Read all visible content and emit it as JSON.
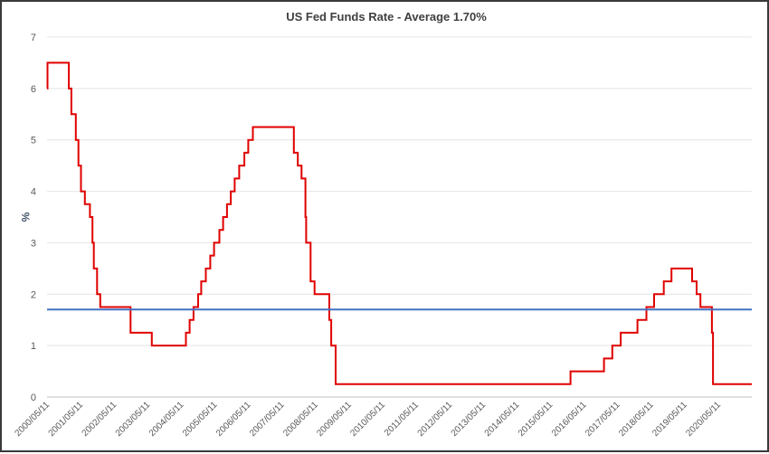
{
  "chart_data": {
    "type": "line",
    "title": "US Fed Funds Rate - Average 1.70%",
    "xlabel": "",
    "ylabel": "%",
    "ylim": [
      0,
      7
    ],
    "yticks": [
      "0",
      "1",
      "2",
      "3",
      "4",
      "5",
      "6",
      "7"
    ],
    "grid": true,
    "xlim": [
      "2000-05-11",
      "2021-05-11"
    ],
    "x_tick_labels": [
      "2000/05/11",
      "2001/05/11",
      "2002/05/11",
      "2003/05/11",
      "2004/05/11",
      "2005/05/11",
      "2006/05/11",
      "2007/05/11",
      "2008/05/11",
      "2009/05/11",
      "2010/05/11",
      "2011/05/11",
      "2012/05/11",
      "2013/05/11",
      "2014/05/11",
      "2015/05/11",
      "2016/05/11",
      "2017/05/11",
      "2018/05/11",
      "2019/05/11",
      "2020/05/11"
    ],
    "series": [
      {
        "color": "#e00000",
        "step": true,
        "x": [
          "2000-05-11",
          "2000-05-16",
          "2001-01-03",
          "2001-01-31",
          "2001-03-20",
          "2001-04-18",
          "2001-05-15",
          "2001-06-27",
          "2001-08-21",
          "2001-09-17",
          "2001-10-02",
          "2001-11-06",
          "2001-12-11",
          "2002-11-06",
          "2003-06-25",
          "2004-06-30",
          "2004-08-10",
          "2004-09-21",
          "2004-11-10",
          "2004-12-14",
          "2005-02-02",
          "2005-03-22",
          "2005-05-03",
          "2005-06-30",
          "2005-08-09",
          "2005-09-20",
          "2005-11-01",
          "2005-12-13",
          "2006-01-31",
          "2006-03-28",
          "2006-05-10",
          "2006-06-29",
          "2007-09-18",
          "2007-10-31",
          "2007-12-11",
          "2008-01-22",
          "2008-01-30",
          "2008-03-18",
          "2008-04-30",
          "2008-10-08",
          "2008-10-29",
          "2008-12-16",
          "2015-12-16",
          "2016-12-14",
          "2017-03-15",
          "2017-06-14",
          "2017-12-13",
          "2018-03-21",
          "2018-06-13",
          "2018-09-26",
          "2018-12-19",
          "2019-07-31",
          "2019-09-18",
          "2019-10-30",
          "2020-03-03",
          "2020-03-15",
          "2021-05-11"
        ],
        "values": [
          6.0,
          6.5,
          6.0,
          5.5,
          5.0,
          4.5,
          4.0,
          3.75,
          3.5,
          3.0,
          2.5,
          2.0,
          1.75,
          1.25,
          1.0,
          1.25,
          1.5,
          1.75,
          2.0,
          2.25,
          2.5,
          2.75,
          3.0,
          3.25,
          3.5,
          3.75,
          4.0,
          4.25,
          4.5,
          4.75,
          5.0,
          5.25,
          4.75,
          4.5,
          4.25,
          3.5,
          3.0,
          2.25,
          2.0,
          1.5,
          1.0,
          0.25,
          0.5,
          0.75,
          1.0,
          1.25,
          1.5,
          1.75,
          2.0,
          2.25,
          2.5,
          2.25,
          2.0,
          1.75,
          1.25,
          0.25,
          0.25
        ]
      },
      {
        "color": "#4472c4",
        "x": [
          "2000-05-11",
          "2021-05-11"
        ],
        "values": [
          1.7,
          1.7
        ]
      }
    ]
  }
}
